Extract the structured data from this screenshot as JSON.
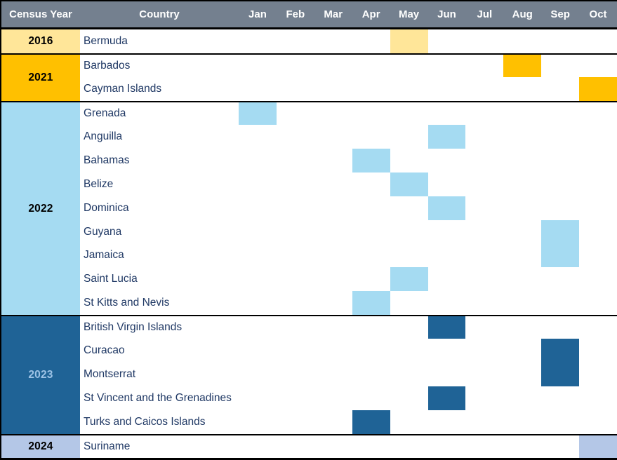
{
  "colors": {
    "header_bg": "#74808F",
    "header_text": "#FFFFFF",
    "country_text": "#1F3864",
    "border": "#000000",
    "row_bg": "#FFFFFF"
  },
  "chart_data": {
    "type": "gantt",
    "columns": {
      "year_header": "Census Year",
      "country_header": "Country"
    },
    "months": [
      "Jan",
      "Feb",
      "Mar",
      "Apr",
      "May",
      "Jun",
      "Jul",
      "Aug",
      "Sep",
      "Oct"
    ],
    "legend_position": "none",
    "grid": "group-separators-only",
    "groups": [
      {
        "year": "2016",
        "fill": "#FFE699",
        "year_text_color": "#000000",
        "rows": [
          {
            "country": "Bermuda",
            "census_month": "May"
          }
        ]
      },
      {
        "year": "2021",
        "fill": "#FFC000",
        "year_text_color": "#000000",
        "rows": [
          {
            "country": "Barbados",
            "census_month": "Aug"
          },
          {
            "country": "Cayman Islands",
            "census_month": "Oct"
          }
        ]
      },
      {
        "year": "2022",
        "fill": "#A5DBF2",
        "year_text_color": "#000000",
        "rows": [
          {
            "country": "Grenada",
            "census_month": "Jan"
          },
          {
            "country": "Anguilla",
            "census_month": "Jun"
          },
          {
            "country": "Bahamas",
            "census_month": "Apr"
          },
          {
            "country": "Belize",
            "census_month": "May"
          },
          {
            "country": "Dominica",
            "census_month": "Jun"
          },
          {
            "country": "Guyana",
            "census_month": "Sep",
            "cell_row_span": 2
          },
          {
            "country": "Jamaica",
            "census_month": "Sep",
            "merged_with_above": true
          },
          {
            "country": "Saint Lucia",
            "census_month": "May"
          },
          {
            "country": "St Kitts and Nevis",
            "census_month": "Apr"
          }
        ]
      },
      {
        "year": "2023",
        "fill": "#1F6396",
        "year_text_color": "#9DC3E6",
        "rows": [
          {
            "country": "British Virgin Islands",
            "census_month": "Jun"
          },
          {
            "country": "Curacao",
            "census_month": "Sep",
            "cell_row_span": 2
          },
          {
            "country": "Montserrat",
            "census_month": "Sep",
            "merged_with_above": true
          },
          {
            "country": "St Vincent and the Grenadines",
            "census_month": "Jun"
          },
          {
            "country": "Turks and Caicos Islands",
            "census_month": "Apr"
          }
        ]
      },
      {
        "year": "2024",
        "fill": "#B4C7E7",
        "year_text_color": "#000000",
        "rows": [
          {
            "country": "Suriname",
            "census_month": "Oct"
          }
        ]
      }
    ]
  }
}
